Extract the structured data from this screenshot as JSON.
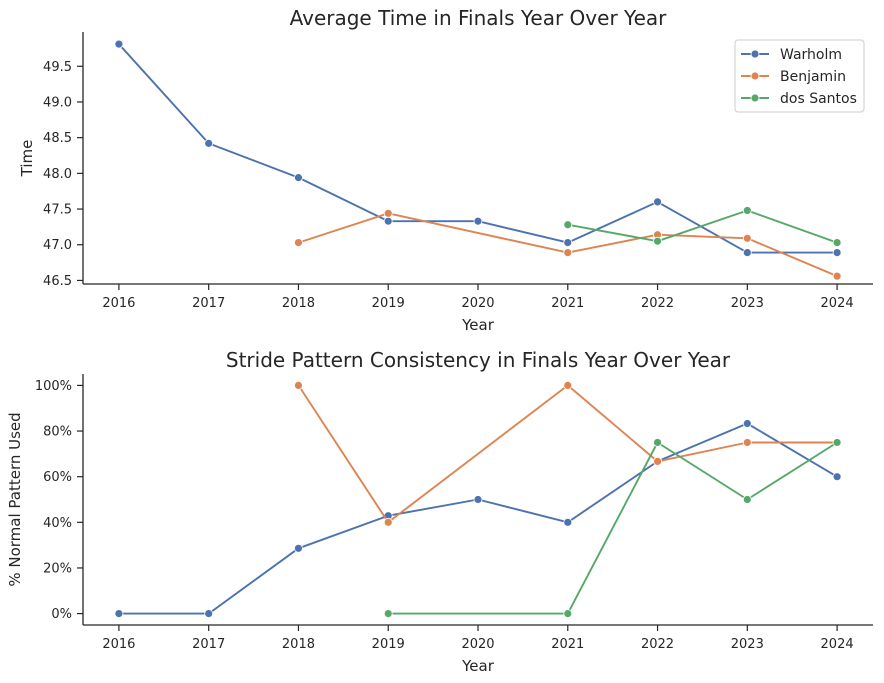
{
  "colors": {
    "Warholm": "#4c72b0",
    "Benjamin": "#dd8452",
    "dos Santos": "#55a868"
  },
  "chart_data": [
    {
      "type": "line",
      "title": "Average Time in Finals Year Over Year",
      "xlabel": "Year",
      "ylabel": "Time",
      "x": [
        2016,
        2017,
        2018,
        2019,
        2020,
        2021,
        2022,
        2023,
        2024
      ],
      "xlim": [
        2015.6,
        2024.4
      ],
      "ylim": [
        46.45,
        49.98
      ],
      "yticks": [
        46.5,
        47.0,
        47.5,
        48.0,
        48.5,
        49.0,
        49.5
      ],
      "ytick_labels": [
        "46.5",
        "47.0",
        "47.5",
        "48.0",
        "48.5",
        "49.0",
        "49.5"
      ],
      "legend": "top-right",
      "series": [
        {
          "name": "Warholm",
          "values": [
            49.81,
            48.42,
            47.94,
            47.33,
            47.33,
            47.03,
            47.6,
            46.89,
            46.89
          ]
        },
        {
          "name": "Benjamin",
          "values": [
            null,
            null,
            47.03,
            47.44,
            null,
            46.89,
            47.14,
            47.09,
            46.56
          ]
        },
        {
          "name": "dos Santos",
          "values": [
            null,
            null,
            null,
            null,
            null,
            47.28,
            47.05,
            47.48,
            47.03
          ]
        }
      ]
    },
    {
      "type": "line",
      "title": "Stride Pattern Consistency in Finals Year Over Year",
      "xlabel": "Year",
      "ylabel": "% Normal Pattern Used",
      "x": [
        2016,
        2017,
        2018,
        2019,
        2020,
        2021,
        2022,
        2023,
        2024
      ],
      "xlim": [
        2015.6,
        2024.4
      ],
      "ylim": [
        -5,
        105
      ],
      "yticks": [
        0,
        20,
        40,
        60,
        80,
        100
      ],
      "ytick_labels": [
        "0%",
        "20%",
        "40%",
        "60%",
        "80%",
        "100%"
      ],
      "series": [
        {
          "name": "Warholm",
          "values": [
            0,
            0,
            28.6,
            42.9,
            50,
            40,
            66.7,
            83.3,
            60
          ]
        },
        {
          "name": "Benjamin",
          "values": [
            null,
            null,
            100,
            40,
            null,
            100,
            66.7,
            75,
            75
          ]
        },
        {
          "name": "dos Santos",
          "values": [
            null,
            null,
            null,
            0,
            null,
            0,
            75,
            50,
            75
          ]
        }
      ]
    }
  ]
}
